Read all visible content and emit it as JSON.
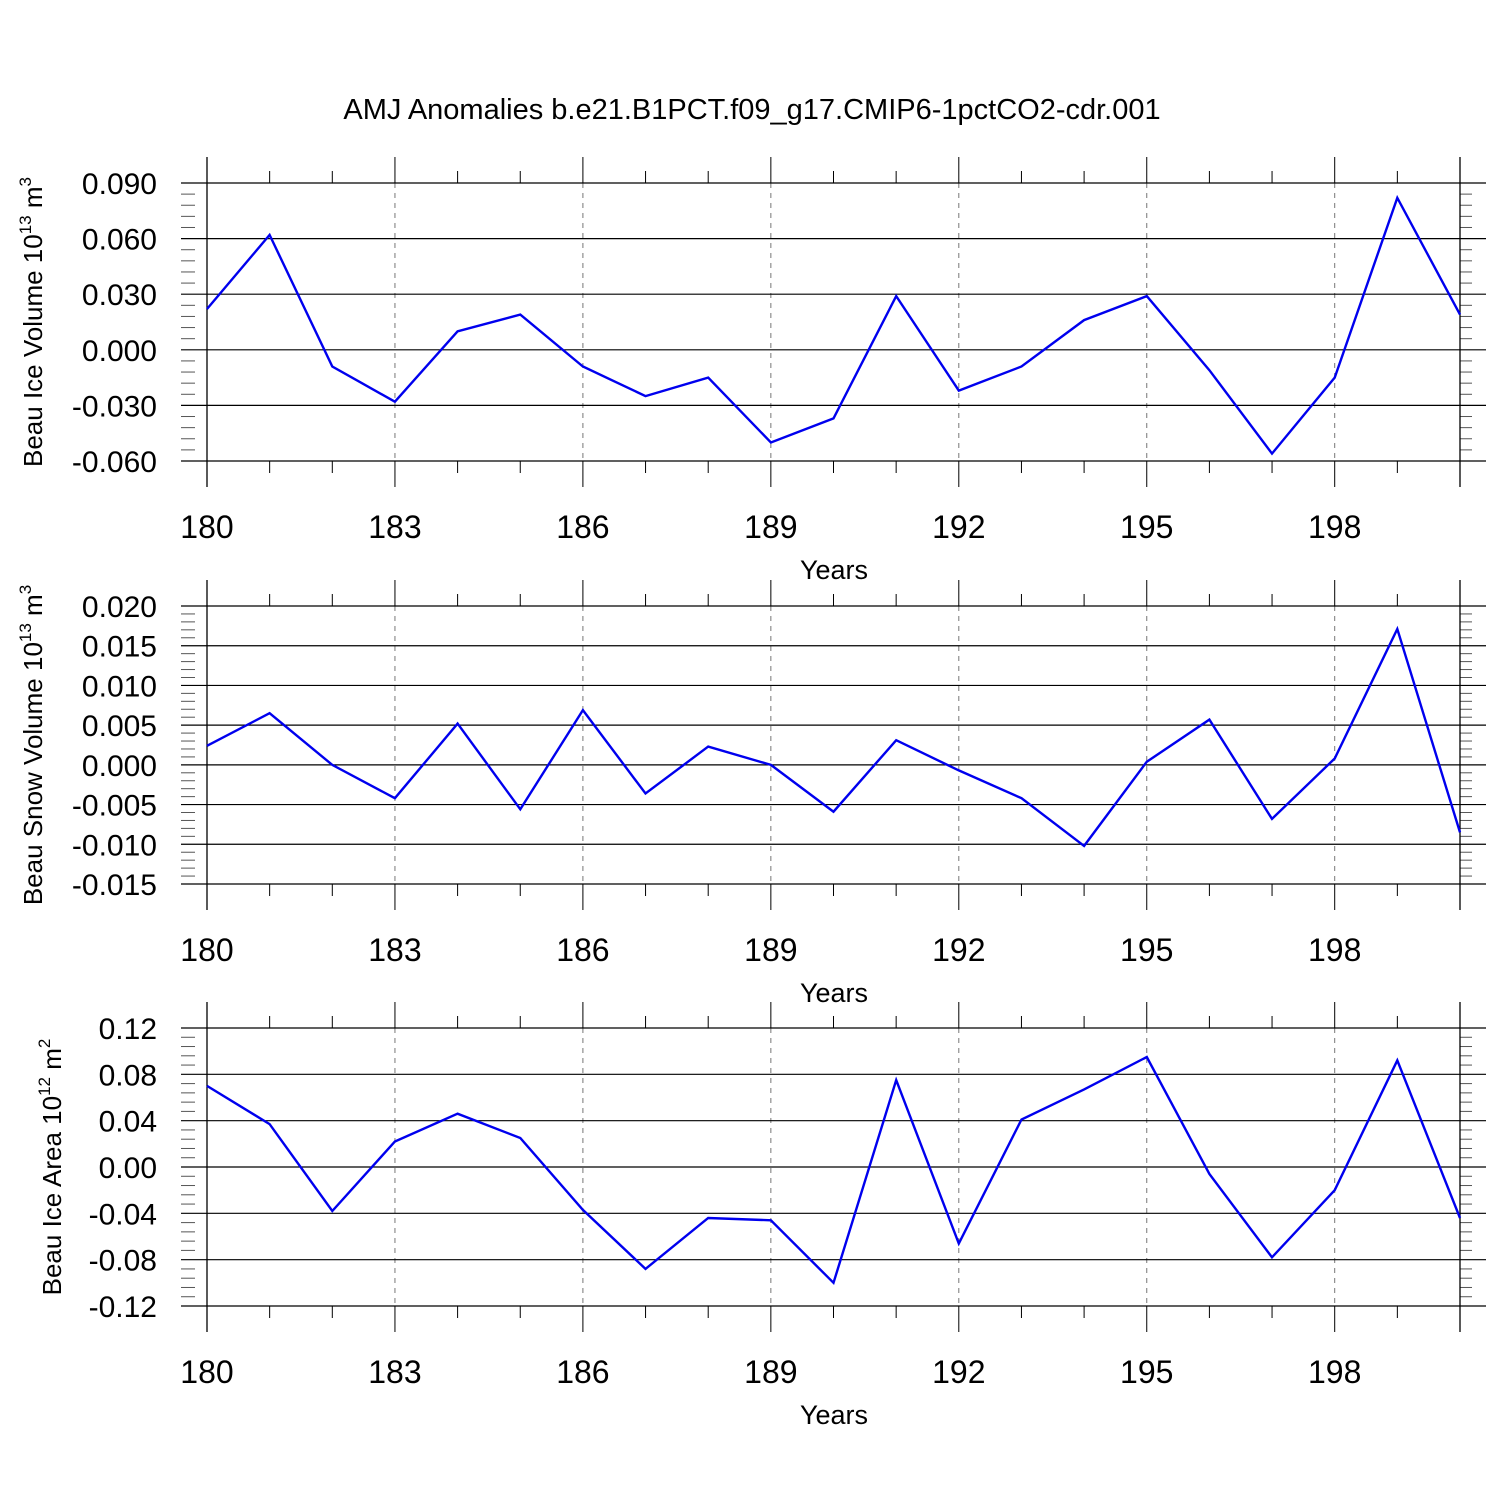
{
  "title": "AMJ Anomalies b.e21.B1PCT.f09_g17.CMIP6-1pctCO2-cdr.001",
  "chart_data": [
    {
      "type": "line",
      "ylabel": {
        "text": "Beau Ice Volume 10",
        "sup": "13",
        "unit": " m",
        "unit_sup": "3"
      },
      "xlabel": "Years",
      "xlim": [
        180,
        200
      ],
      "ylim": [
        -0.06,
        0.09
      ],
      "yticks": [
        -0.06,
        -0.03,
        0.0,
        0.03,
        0.06,
        0.09
      ],
      "ytick_labels": [
        "-0.060",
        "-0.030",
        "0.000",
        "0.030",
        "0.060",
        "0.090"
      ],
      "xticks": [
        180,
        183,
        186,
        189,
        192,
        195,
        198
      ],
      "xtick_labels": [
        "180",
        "183",
        "186",
        "189",
        "192",
        "195",
        "198"
      ],
      "line_color": "#0000ee",
      "x": [
        180,
        181,
        182,
        183,
        184,
        185,
        186,
        187,
        188,
        189,
        190,
        191,
        192,
        193,
        194,
        195,
        196,
        197,
        198,
        199,
        200
      ],
      "values": [
        0.022,
        0.062,
        -0.009,
        -0.028,
        0.01,
        0.019,
        -0.009,
        -0.025,
        -0.015,
        -0.05,
        -0.037,
        0.029,
        -0.022,
        -0.009,
        0.016,
        0.029,
        -0.011,
        -0.056,
        -0.015,
        0.082,
        0.019
      ]
    },
    {
      "type": "line",
      "ylabel": {
        "text": "Beau Snow Volume 10",
        "sup": "13",
        "unit": " m",
        "unit_sup": "3"
      },
      "xlabel": "Years",
      "xlim": [
        180,
        200
      ],
      "ylim": [
        -0.015,
        0.02
      ],
      "yticks": [
        -0.015,
        -0.01,
        -0.005,
        0.0,
        0.005,
        0.01,
        0.015,
        0.02
      ],
      "ytick_labels": [
        "-0.015",
        "-0.010",
        "-0.005",
        "0.000",
        "0.005",
        "0.010",
        "0.015",
        "0.020"
      ],
      "xticks": [
        180,
        183,
        186,
        189,
        192,
        195,
        198
      ],
      "xtick_labels": [
        "180",
        "183",
        "186",
        "189",
        "192",
        "195",
        "198"
      ],
      "line_color": "#0000ee",
      "x": [
        180,
        181,
        182,
        183,
        184,
        185,
        186,
        187,
        188,
        189,
        190,
        191,
        192,
        193,
        194,
        195,
        196,
        197,
        198,
        199,
        200
      ],
      "values": [
        0.0024,
        0.0065,
        0.0,
        -0.0042,
        0.0052,
        -0.0056,
        0.0069,
        -0.0036,
        0.0023,
        0.0,
        -0.0059,
        0.0031,
        -0.0007,
        -0.0042,
        -0.0102,
        0.0004,
        0.0057,
        -0.0068,
        0.0008,
        0.0171,
        -0.0085
      ]
    },
    {
      "type": "line",
      "ylabel": {
        "text": "Beau Ice Area 10",
        "sup": "12",
        "unit": " m",
        "unit_sup": "2"
      },
      "xlabel": "Years",
      "xlim": [
        180,
        200
      ],
      "ylim": [
        -0.12,
        0.12
      ],
      "yticks": [
        -0.12,
        -0.08,
        -0.04,
        0.0,
        0.04,
        0.08,
        0.12
      ],
      "ytick_labels": [
        "-0.12",
        "-0.08",
        "-0.04",
        "0.00",
        "0.04",
        "0.08",
        "0.12"
      ],
      "xticks": [
        180,
        183,
        186,
        189,
        192,
        195,
        198
      ],
      "xtick_labels": [
        "180",
        "183",
        "186",
        "189",
        "192",
        "195",
        "198"
      ],
      "line_color": "#0000ee",
      "x": [
        180,
        181,
        182,
        183,
        184,
        185,
        186,
        187,
        188,
        189,
        190,
        191,
        192,
        193,
        194,
        195,
        196,
        197,
        198,
        199,
        200
      ],
      "values": [
        0.07,
        0.037,
        -0.038,
        0.022,
        0.046,
        0.025,
        -0.037,
        -0.088,
        -0.044,
        -0.046,
        -0.1,
        0.075,
        -0.066,
        0.041,
        0.067,
        0.095,
        -0.006,
        -0.078,
        -0.02,
        0.092,
        -0.044
      ]
    }
  ]
}
